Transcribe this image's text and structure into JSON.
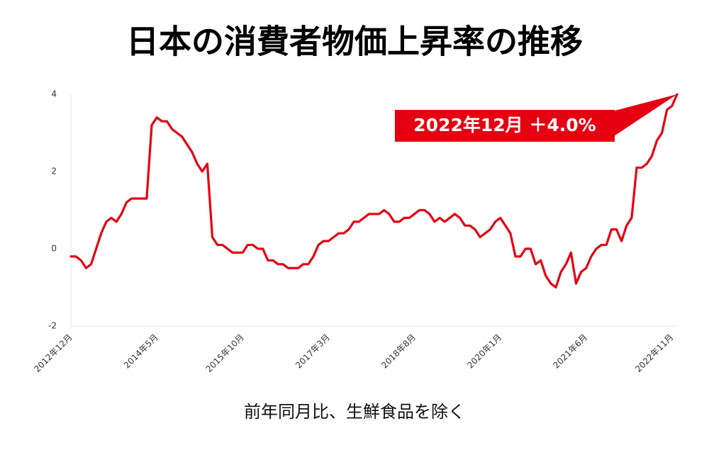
{
  "chart_data": {
    "type": "line",
    "title": "日本の消費者物価上昇率の推移",
    "caption": "前年同月比、生鮮食品を除く",
    "annotation": "2022年12月 ＋4.0%",
    "categories": [
      "2012年12月",
      null,
      null,
      null,
      null,
      null,
      null,
      null,
      null,
      null,
      null,
      null,
      null,
      null,
      null,
      null,
      null,
      "2014年5月",
      null,
      null,
      null,
      null,
      null,
      null,
      null,
      null,
      null,
      null,
      null,
      null,
      null,
      null,
      null,
      null,
      "2015年10月",
      null,
      null,
      null,
      null,
      null,
      null,
      null,
      null,
      null,
      null,
      null,
      null,
      null,
      null,
      null,
      null,
      "2017年3月",
      null,
      null,
      null,
      null,
      null,
      null,
      null,
      null,
      null,
      null,
      null,
      null,
      null,
      null,
      null,
      null,
      "2018年8月",
      null,
      null,
      null,
      null,
      null,
      null,
      null,
      null,
      null,
      null,
      null,
      null,
      null,
      null,
      null,
      null,
      "2020年1月",
      null,
      null,
      null,
      null,
      null,
      null,
      null,
      null,
      null,
      null,
      null,
      null,
      null,
      null,
      null,
      null,
      "2021年6月",
      null,
      null,
      null,
      null,
      null,
      null,
      null,
      null,
      null,
      null,
      null,
      null,
      null,
      null,
      null,
      null,
      "2022年11月",
      null
    ],
    "values": [
      -0.2,
      -0.2,
      -0.3,
      -0.5,
      -0.4,
      0.0,
      0.4,
      0.7,
      0.8,
      0.7,
      0.9,
      1.2,
      1.3,
      1.3,
      1.3,
      1.3,
      3.2,
      3.4,
      3.3,
      3.3,
      3.1,
      3.0,
      2.9,
      2.7,
      2.5,
      2.2,
      2.0,
      2.2,
      0.3,
      0.1,
      0.1,
      0.0,
      -0.1,
      -0.1,
      -0.1,
      0.1,
      0.1,
      0.0,
      0.0,
      -0.3,
      -0.3,
      -0.4,
      -0.4,
      -0.5,
      -0.5,
      -0.5,
      -0.4,
      -0.4,
      -0.2,
      0.1,
      0.2,
      0.2,
      0.3,
      0.4,
      0.4,
      0.5,
      0.7,
      0.7,
      0.8,
      0.9,
      0.9,
      0.9,
      1.0,
      0.9,
      0.7,
      0.7,
      0.8,
      0.8,
      0.9,
      1.0,
      1.0,
      0.9,
      0.7,
      0.8,
      0.7,
      0.8,
      0.9,
      0.8,
      0.6,
      0.6,
      0.5,
      0.3,
      0.4,
      0.5,
      0.7,
      0.8,
      0.6,
      0.4,
      -0.2,
      -0.2,
      0.0,
      0.0,
      -0.4,
      -0.3,
      -0.7,
      -0.9,
      -1.0,
      -0.6,
      -0.4,
      -0.1,
      -0.9,
      -0.6,
      -0.5,
      -0.2,
      0.0,
      0.1,
      0.1,
      0.5,
      0.5,
      0.2,
      0.6,
      0.8,
      2.1,
      2.1,
      2.2,
      2.4,
      2.8,
      3.0,
      3.6,
      3.7,
      4.0
    ],
    "color": "#e50012",
    "ylim": [
      -2,
      4
    ],
    "yticks": [
      -2,
      0,
      2,
      4
    ],
    "grid": false
  }
}
